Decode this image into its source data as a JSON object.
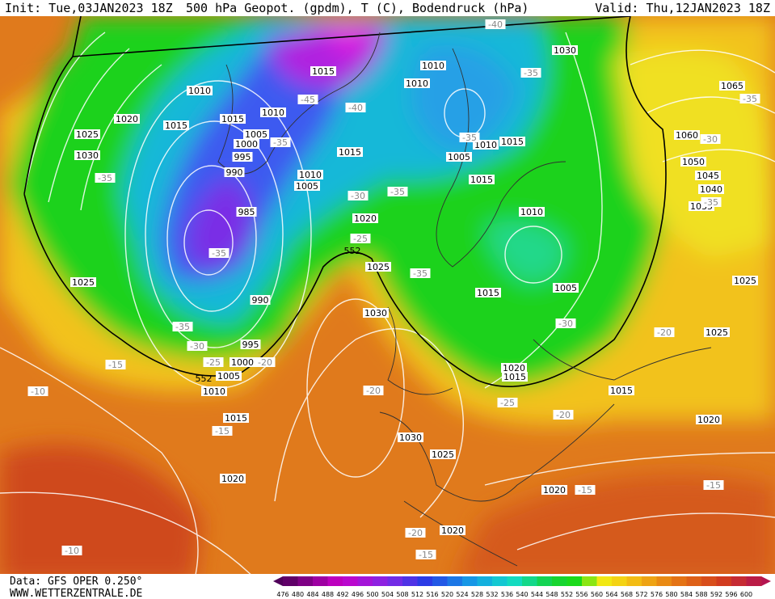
{
  "header": {
    "init": "Init: Tue,03JAN2023 18Z",
    "title": "500 hPa Geopot. (gpdm), T (C), Bodendruck (hPa)",
    "valid": "Valid: Thu,12JAN2023 18Z"
  },
  "footer": {
    "data_source": "Data: GFS OPER 0.250°",
    "website": "WWW.WETTERZENTRALE.DE"
  },
  "colorbar": {
    "levels": [
      476,
      480,
      484,
      488,
      492,
      496,
      500,
      504,
      508,
      512,
      516,
      520,
      524,
      528,
      532,
      536,
      540,
      544,
      548,
      552,
      556,
      560,
      564,
      568,
      572,
      576,
      580,
      584,
      588,
      592,
      596,
      600
    ]
  },
  "map": {
    "pressure_labels": [
      "1015",
      "1010",
      "1020",
      "1015",
      "1025",
      "1030",
      "1010",
      "1015",
      "1005",
      "1000",
      "995",
      "990",
      "1015",
      "1010",
      "1005",
      "985",
      "1025",
      "990",
      "995",
      "1000",
      "1005",
      "1010",
      "1015",
      "1020",
      "1020",
      "1025",
      "1030",
      "1030",
      "1025",
      "1020",
      "1020",
      "1010",
      "1010",
      "1005",
      "1010",
      "1015",
      "1015",
      "1010",
      "1005",
      "1015",
      "1020",
      "1015",
      "1015",
      "1020",
      "1025",
      "1025",
      "1030",
      "1065",
      "1060",
      "1050",
      "1045",
      "1040",
      "1035"
    ],
    "temperature_labels": [
      "-40",
      "-35",
      "-45",
      "-40",
      "-35",
      "-35",
      "-35",
      "-30",
      "-35",
      "-25",
      "-35",
      "-35",
      "-35",
      "-30",
      "-25",
      "-20",
      "-15",
      "-10",
      "-20",
      "-15",
      "-30",
      "-20",
      "-25",
      "-20",
      "-15",
      "-15",
      "-20",
      "-15",
      "-10",
      "-30",
      "-35",
      "-35"
    ],
    "geopotential_labels": [
      "552",
      "552"
    ]
  }
}
